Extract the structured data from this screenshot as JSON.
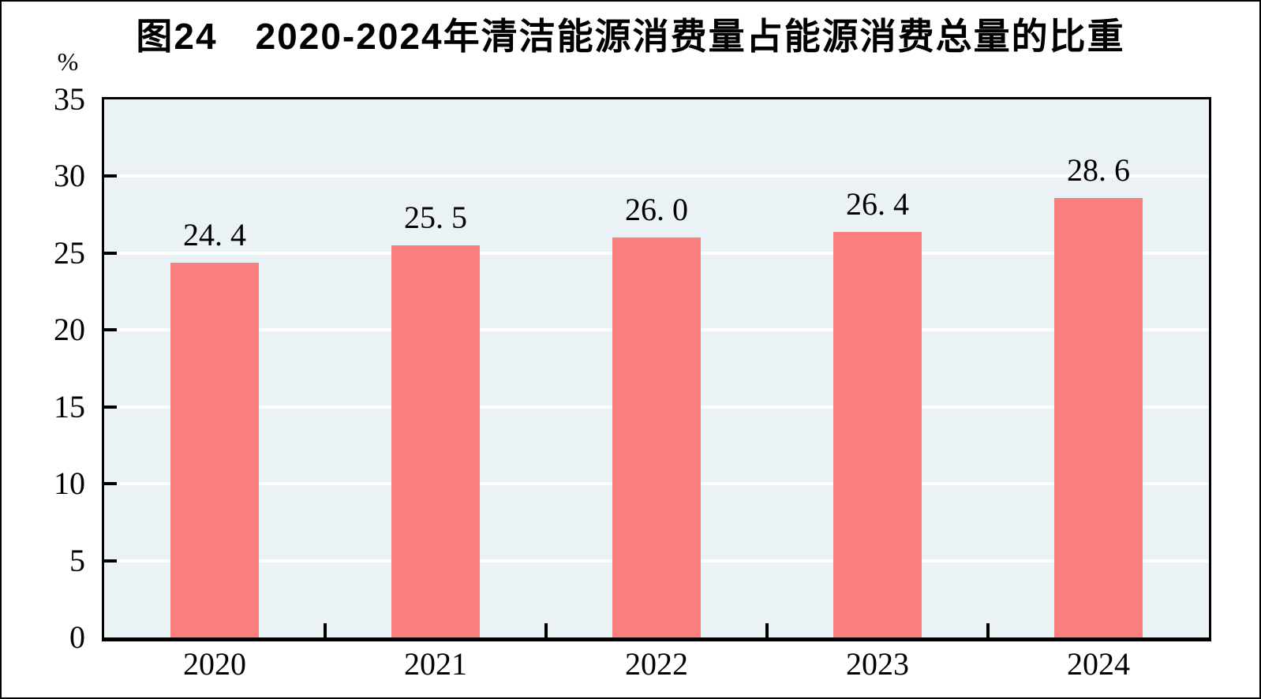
{
  "figure": {
    "title": "图24　2020-2024年清洁能源消费量占能源消费总量的比重",
    "unit_label": "%"
  },
  "colors": {
    "bar": "#fb7e7e",
    "plot_background": "#ebf2f6",
    "gridline": "#ffffff",
    "axis": "#000000",
    "text": "#000000"
  },
  "chart_data": {
    "type": "bar",
    "title": "图24　2020-2024年清洁能源消费量占能源消费总量的比重",
    "categories": [
      "2020",
      "2021",
      "2022",
      "2023",
      "2024"
    ],
    "values": [
      24.4,
      25.5,
      26.0,
      26.4,
      28.6
    ],
    "value_labels": [
      "24. 4",
      "25. 5",
      "26. 0",
      "26. 4",
      "28. 6"
    ],
    "xlabel": "",
    "ylabel": "%",
    "ylim": [
      0,
      35
    ],
    "yticks": [
      0,
      5,
      10,
      15,
      20,
      25,
      30,
      35
    ],
    "grid": "horizontal",
    "legend_position": "none"
  }
}
